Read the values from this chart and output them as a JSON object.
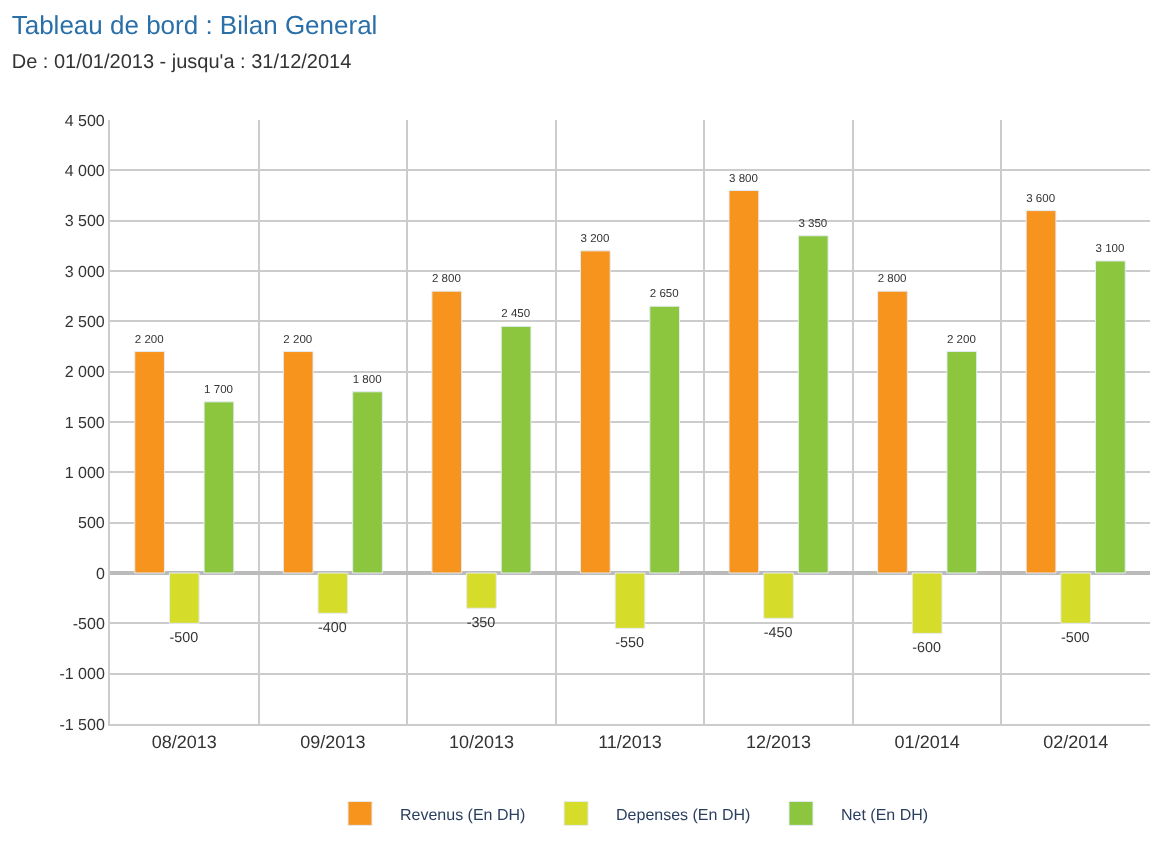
{
  "chart_data": {
    "type": "bar",
    "title": "Tableau de bord : Bilan General",
    "subtitle": "De : 01/01/2013 - jusqu'a : 31/12/2014",
    "categories": [
      "08/2013",
      "09/2013",
      "10/2013",
      "11/2013",
      "12/2013",
      "01/2014",
      "02/2014"
    ],
    "series": [
      {
        "name": "Revenus (En DH)",
        "color": "#f7941d",
        "values": [
          2200,
          2200,
          2800,
          3200,
          3800,
          2800,
          3600
        ],
        "value_labels": [
          "2 200",
          "2 200",
          "2 800",
          "3 200",
          "3 800",
          "2 800",
          "3 600"
        ]
      },
      {
        "name": "Depenses (En DH)",
        "color": "#d6dc2a",
        "values": [
          -500,
          -400,
          -350,
          -550,
          -450,
          -600,
          -500
        ],
        "value_labels": [
          "-500",
          "-400",
          "-350",
          "-550",
          "-450",
          "-600",
          "-500"
        ]
      },
      {
        "name": "Net (En DH)",
        "color": "#8cc63f",
        "values": [
          1700,
          1800,
          2450,
          2650,
          3350,
          2200,
          3100
        ],
        "value_labels": [
          "1 700",
          "1 800",
          "2 450",
          "2 650",
          "3 350",
          "2 200",
          "3 100"
        ]
      }
    ],
    "ylim": [
      -1500,
      4500
    ],
    "yticks": [
      {
        "value": -1500,
        "label": "-1 500"
      },
      {
        "value": -1000,
        "label": "-1 000"
      },
      -500,
      0,
      500,
      {
        "value": 1000,
        "label": "1 000"
      },
      {
        "value": 1500,
        "label": "1 500"
      },
      {
        "value": 2000,
        "label": "2 000"
      },
      {
        "value": 2500,
        "label": "2 500"
      },
      {
        "value": 3000,
        "label": "3 000"
      },
      {
        "value": 3500,
        "label": "3 500"
      },
      {
        "value": 4000,
        "label": "4 000"
      },
      {
        "value": 4500,
        "label": "4 500"
      }
    ],
    "grid": true,
    "legend": "bottom"
  }
}
